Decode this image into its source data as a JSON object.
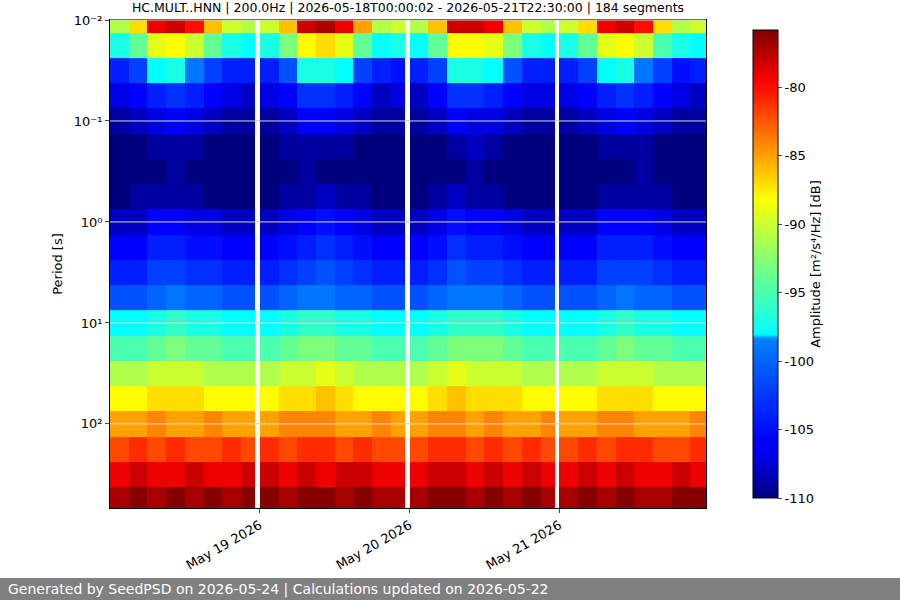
{
  "chart_data": {
    "type": "heatmap",
    "title": "HC.MULT..HNN | 200.0Hz | 2026-05-18T00:00:02 - 2026-05-21T22:30:00 | 184 segments",
    "y_label": "Period [s]",
    "colorbar_label": "Amplitude [m²/s⁴/Hz] [dB]",
    "footer": "Generated by SeedPSD on 2026-05-24 | Calculations updated on 2026-05-22",
    "color": "jet",
    "log": "y",
    "grid": true,
    "x": [
      "2026-05-18 00:00",
      "2026-05-18 03:00",
      "2026-05-18 06:00",
      "2026-05-18 09:00",
      "2026-05-18 12:00",
      "2026-05-18 15:00",
      "2026-05-18 18:00",
      "2026-05-18 21:00",
      "2026-05-18 23:15",
      "2026-05-19 00:00",
      "2026-05-19 03:00",
      "2026-05-19 06:00",
      "2026-05-19 09:00",
      "2026-05-19 12:00",
      "2026-05-19 15:00",
      "2026-05-19 18:00",
      "2026-05-19 21:00",
      "2026-05-19 23:15",
      "2026-05-20 00:00",
      "2026-05-20 03:00",
      "2026-05-20 06:00",
      "2026-05-20 09:00",
      "2026-05-20 12:00",
      "2026-05-20 15:00",
      "2026-05-20 18:00",
      "2026-05-20 21:00",
      "2026-05-20 23:15",
      "2026-05-21 00:00",
      "2026-05-21 03:00",
      "2026-05-21 06:00",
      "2026-05-21 09:00",
      "2026-05-21 12:00",
      "2026-05-21 15:00",
      "2026-05-21 18:00",
      "2026-05-21 21:00",
      "2026-05-21 23:30"
    ],
    "y": [
      0.01,
      0.018,
      0.032,
      0.056,
      0.1,
      0.18,
      0.32,
      0.56,
      1,
      1.8,
      3.2,
      5.6,
      10,
      18,
      32,
      56,
      100,
      180,
      320,
      560
    ],
    "cells": [
      [
        -91,
        -87,
        -79,
        -78,
        -80,
        -86,
        -90,
        -91,
        null,
        -90,
        -86,
        -78,
        -77,
        -79,
        -85,
        -91,
        -90,
        null,
        -91,
        -86,
        -78,
        -78,
        -79,
        -86,
        -90,
        -91,
        null,
        -90,
        -87,
        -79,
        -78,
        -80,
        -87,
        -91,
        -90
      ],
      [
        -97,
        -94,
        -89,
        -88,
        -90,
        -94,
        -97,
        -98,
        null,
        -97,
        -93,
        -88,
        -87,
        -89,
        -94,
        -98,
        -97,
        null,
        -98,
        -94,
        -88,
        -88,
        -89,
        -93,
        -97,
        -98,
        null,
        -97,
        -94,
        -89,
        -88,
        -90,
        -95,
        -97,
        -98
      ],
      [
        -104,
        -102,
        -98,
        -97,
        -99,
        -102,
        -104,
        -104,
        null,
        -104,
        -101,
        -97,
        -97,
        -98,
        -102,
        -104,
        -105,
        null,
        -104,
        -102,
        -97,
        -97,
        -98,
        -101,
        -104,
        -104,
        null,
        -104,
        -102,
        -98,
        -97,
        -99,
        -102,
        -105,
        -104
      ],
      [
        -107,
        -106,
        -104,
        -103,
        -104,
        -106,
        -107,
        -108,
        null,
        -107,
        -106,
        -103,
        -103,
        -104,
        -106,
        -108,
        -107,
        null,
        -108,
        -106,
        -103,
        -103,
        -104,
        -106,
        -107,
        -107,
        null,
        -107,
        -106,
        -104,
        -103,
        -104,
        -106,
        -107,
        -108
      ],
      [
        -109,
        -108,
        -107,
        -106,
        -107,
        -108,
        -109,
        -109,
        null,
        -109,
        -108,
        -106,
        -106,
        -107,
        -108,
        -109,
        -109,
        null,
        -109,
        -108,
        -106,
        -107,
        -107,
        -108,
        -109,
        -109,
        null,
        -109,
        -108,
        -107,
        -106,
        -107,
        -108,
        -109,
        -109
      ],
      [
        -110,
        -110,
        -109,
        -109,
        -109,
        -110,
        -110,
        -110,
        null,
        -110,
        -109,
        -109,
        -109,
        -109,
        -110,
        -110,
        -110,
        null,
        -110,
        -110,
        -109,
        -108,
        -109,
        -110,
        -110,
        -110,
        null,
        -110,
        -110,
        -109,
        -109,
        -109,
        -110,
        -110,
        -110
      ],
      [
        -110,
        -110,
        -110,
        -109,
        -110,
        -110,
        -110,
        -110,
        null,
        -110,
        -110,
        -109,
        -110,
        -110,
        -110,
        -110,
        -110,
        null,
        -110,
        -110,
        -110,
        -109,
        -110,
        -110,
        -110,
        -110,
        null,
        -110,
        -110,
        -110,
        -110,
        -109,
        -110,
        -110,
        -110
      ],
      [
        -110,
        -109,
        -109,
        -109,
        -109,
        -110,
        -110,
        -110,
        null,
        -110,
        -109,
        -109,
        -108,
        -109,
        -109,
        -110,
        -110,
        null,
        -110,
        -109,
        -108,
        -109,
        -109,
        -110,
        -110,
        -110,
        null,
        -110,
        -110,
        -109,
        -109,
        -109,
        -109,
        -110,
        -110
      ],
      [
        -108,
        -108,
        -106,
        -106,
        -107,
        -107,
        -108,
        -108,
        null,
        -108,
        -107,
        -106,
        -105,
        -106,
        -107,
        -108,
        -108,
        null,
        -108,
        -107,
        -105,
        -106,
        -106,
        -107,
        -108,
        -108,
        null,
        -108,
        -108,
        -106,
        -106,
        -106,
        -107,
        -108,
        -108
      ],
      [
        -106,
        -106,
        -104,
        -104,
        -105,
        -105,
        -106,
        -106,
        null,
        -106,
        -105,
        -104,
        -103,
        -104,
        -105,
        -106,
        -106,
        null,
        -106,
        -105,
        -103,
        -104,
        -104,
        -105,
        -106,
        -106,
        null,
        -106,
        -106,
        -104,
        -104,
        -104,
        -105,
        -106,
        -106
      ],
      [
        -104,
        -104,
        -102,
        -102,
        -103,
        -103,
        -104,
        -104,
        null,
        -104,
        -103,
        -102,
        -101,
        -102,
        -103,
        -104,
        -104,
        null,
        -104,
        -103,
        -101,
        -102,
        -102,
        -103,
        -104,
        -104,
        null,
        -104,
        -104,
        -102,
        -102,
        -102,
        -103,
        -104,
        -104
      ],
      [
        -101,
        -101,
        -100,
        -99,
        -100,
        -100,
        -101,
        -101,
        null,
        -101,
        -100,
        -99,
        -99,
        -100,
        -100,
        -101,
        -101,
        null,
        -101,
        -100,
        -99,
        -99,
        -99,
        -100,
        -101,
        -101,
        null,
        -101,
        -101,
        -100,
        -99,
        -100,
        -100,
        -101,
        -101
      ],
      [
        -98,
        -98,
        -97,
        -96,
        -97,
        -97,
        -98,
        -98,
        null,
        -98,
        -97,
        -96,
        -96,
        -97,
        -97,
        -98,
        -98,
        null,
        -98,
        -97,
        -96,
        -96,
        -96,
        -97,
        -98,
        -98,
        null,
        -98,
        -98,
        -97,
        -96,
        -97,
        -97,
        -98,
        -98
      ],
      [
        -95,
        -95,
        -94,
        -93,
        -94,
        -94,
        -95,
        -95,
        null,
        -95,
        -94,
        -93,
        -93,
        -94,
        -94,
        -95,
        -95,
        null,
        -95,
        -94,
        -93,
        -93,
        -93,
        -94,
        -95,
        -95,
        null,
        -95,
        -95,
        -94,
        -93,
        -94,
        -94,
        -95,
        -95
      ],
      [
        -91,
        -91,
        -90,
        -90,
        -90,
        -91,
        -91,
        -91,
        null,
        -91,
        -90,
        -90,
        -89,
        -90,
        -91,
        -91,
        -91,
        null,
        -91,
        -90,
        -89,
        -90,
        -90,
        -90,
        -91,
        -91,
        null,
        -91,
        -91,
        -90,
        -90,
        -90,
        -91,
        -91,
        -91
      ],
      [
        -88,
        -88,
        -87,
        -87,
        -87,
        -88,
        -88,
        -88,
        null,
        -88,
        -87,
        -87,
        -86,
        -87,
        -88,
        -88,
        -88,
        null,
        -88,
        -87,
        -86,
        -87,
        -87,
        -87,
        -88,
        -88,
        null,
        -88,
        -88,
        -87,
        -87,
        -87,
        -88,
        -88,
        -88
      ],
      [
        -85,
        -85,
        -84,
        -85,
        -85,
        -84,
        -85,
        -85,
        null,
        -85,
        -84,
        -84,
        -84,
        -85,
        -85,
        -84,
        -85,
        null,
        -85,
        -84,
        -84,
        -85,
        -84,
        -85,
        -85,
        -84,
        null,
        -85,
        -85,
        -84,
        -84,
        -85,
        -85,
        -85,
        -84
      ],
      [
        -82,
        -81,
        -82,
        -81,
        -82,
        -82,
        -81,
        -82,
        null,
        -81,
        -82,
        -81,
        -81,
        -82,
        -81,
        -82,
        -82,
        null,
        -82,
        -81,
        -81,
        -82,
        -81,
        -82,
        -81,
        -82,
        null,
        -82,
        -81,
        -82,
        -81,
        -81,
        -82,
        -82,
        -81
      ],
      [
        -79,
        -78,
        -79,
        -79,
        -78,
        -79,
        -79,
        -78,
        null,
        -78,
        -79,
        -78,
        -79,
        -78,
        -78,
        -79,
        -79,
        null,
        -79,
        -78,
        -78,
        -79,
        -78,
        -79,
        -78,
        -79,
        null,
        -79,
        -78,
        -79,
        -78,
        -79,
        -79,
        -78,
        -79
      ],
      [
        -77,
        -76,
        -77,
        -76,
        -77,
        -76,
        -77,
        -76,
        null,
        -76,
        -77,
        -76,
        -76,
        -77,
        -76,
        -77,
        -77,
        null,
        -77,
        -76,
        -76,
        -77,
        -76,
        -77,
        -76,
        -77,
        null,
        -77,
        -76,
        -77,
        -76,
        -77,
        -77,
        -76,
        -76
      ]
    ],
    "xlim": [
      "2026-05-18 00:00",
      "2026-05-21 23:30"
    ],
    "xticks": [
      {
        "value": "2026-05-19 00:00",
        "label": "May 19 2026"
      },
      {
        "value": "2026-05-20 00:00",
        "label": "May 20 2026"
      },
      {
        "value": "2026-05-21 00:00",
        "label": "May 21 2026"
      }
    ],
    "ylim": [
      0.01,
      680
    ],
    "yticks": [
      {
        "value": 0.01,
        "label": "10⁻²"
      },
      {
        "value": 0.1,
        "label": "10⁻¹"
      },
      {
        "value": 1,
        "label": "10⁰"
      },
      {
        "value": 10,
        "label": "10¹"
      },
      {
        "value": 100,
        "label": "10²"
      }
    ],
    "zlim": [
      -110,
      -75.8
    ],
    "zticks": [
      -110,
      -105,
      -100,
      -95,
      -90,
      -85,
      -80
    ]
  }
}
